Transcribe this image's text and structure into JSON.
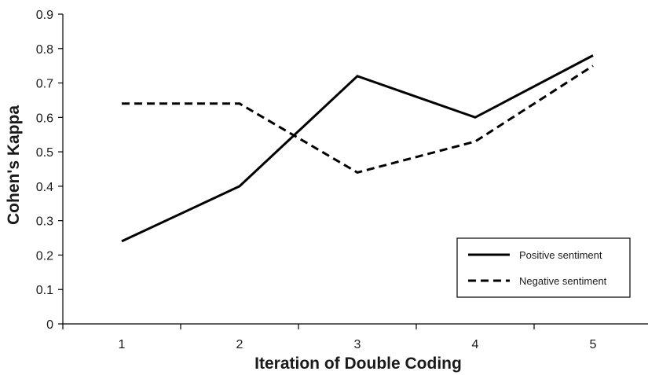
{
  "chart_data": {
    "type": "line",
    "xlabel": "Iteration of Double Coding",
    "ylabel": "Cohen's Kappa",
    "categories": [
      "1",
      "2",
      "3",
      "4",
      "5"
    ],
    "ylim": [
      0,
      0.9
    ],
    "yticks": [
      "0",
      "0.1",
      "0.2",
      "0.3",
      "0.4",
      "0.5",
      "0.6",
      "0.7",
      "0.8",
      "0.9"
    ],
    "grid": false,
    "legend_position": "bottom-right",
    "series": [
      {
        "name": "Positive sentiment",
        "style": "solid",
        "color": "#000000",
        "values": [
          0.24,
          0.4,
          0.72,
          0.6,
          0.78
        ]
      },
      {
        "name": "Negative sentiment",
        "style": "dashed",
        "color": "#000000",
        "values": [
          0.64,
          0.64,
          0.44,
          0.53,
          0.75
        ]
      }
    ]
  }
}
